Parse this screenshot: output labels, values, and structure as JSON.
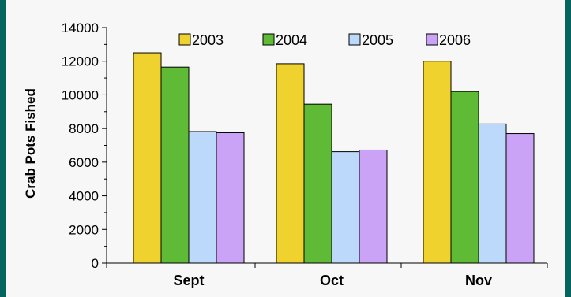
{
  "colors": {
    "background": "#06645f",
    "panel": "#f7f7f7"
  },
  "chart_data": {
    "type": "bar",
    "title": "",
    "xlabel": "",
    "ylabel": "Crab Pots Fished",
    "ylim": [
      0,
      14000
    ],
    "yticks": [
      0,
      2000,
      4000,
      6000,
      8000,
      10000,
      12000,
      14000
    ],
    "categories": [
      "Sept",
      "Oct",
      "Nov"
    ],
    "legend_position": "top",
    "grid": false,
    "series": [
      {
        "name": "2003",
        "color": "#f0d22e",
        "values": [
          12500,
          11850,
          12000
        ]
      },
      {
        "name": "2004",
        "color": "#5fbb36",
        "values": [
          11650,
          9450,
          10200
        ]
      },
      {
        "name": "2005",
        "color": "#bcd9fb",
        "values": [
          7820,
          6620,
          8270
        ]
      },
      {
        "name": "2006",
        "color": "#caa3f6",
        "values": [
          7750,
          6720,
          7700
        ]
      }
    ]
  }
}
